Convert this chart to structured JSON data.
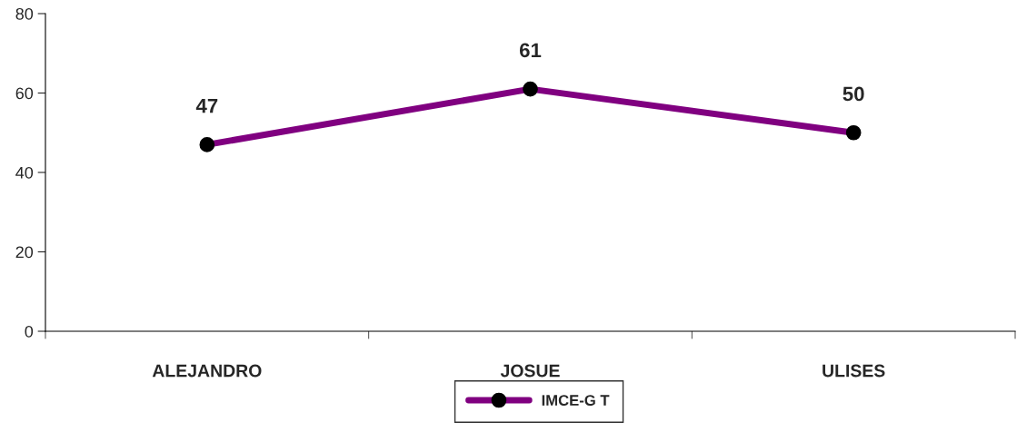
{
  "chart_data": {
    "type": "line",
    "categories": [
      "ALEJANDRO",
      "JOSUE",
      "ULISES"
    ],
    "series": [
      {
        "name": "IMCE-G T",
        "color": "#800080",
        "values": [
          47,
          61,
          50
        ]
      }
    ],
    "ylim": [
      0,
      80
    ],
    "yticks": [
      0,
      20,
      40,
      60,
      80
    ],
    "grid": false,
    "legend": "bottom",
    "marker": "circle",
    "line_style": "solid",
    "data_labels": true
  }
}
